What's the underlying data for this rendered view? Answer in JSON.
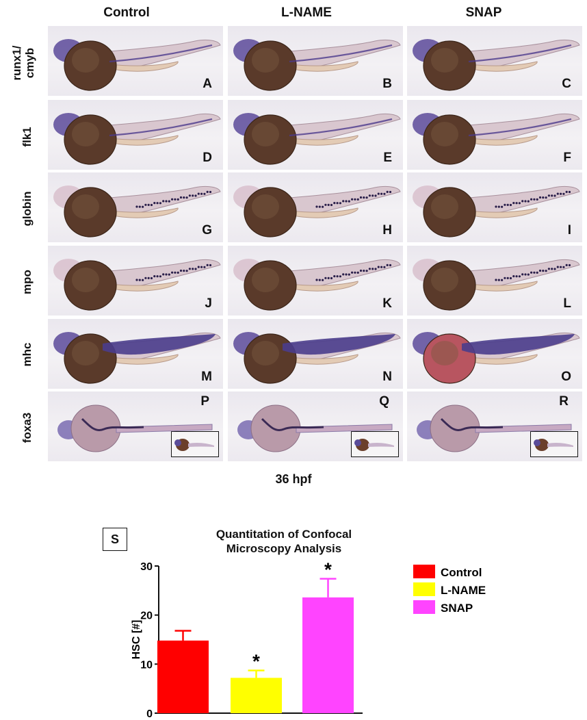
{
  "columns": [
    "Control",
    "L-NAME",
    "SNAP"
  ],
  "rows": [
    {
      "label_lines": [
        "runx1/",
        "cmyb"
      ],
      "stain": "purple",
      "panels": [
        "A",
        "B",
        "C"
      ]
    },
    {
      "label_lines": [
        "flk1"
      ],
      "stain": "purple",
      "panels": [
        "D",
        "E",
        "F"
      ]
    },
    {
      "label_lines": [
        "globin"
      ],
      "stain": "dots",
      "panels": [
        "G",
        "H",
        "I"
      ]
    },
    {
      "label_lines": [
        "mpo"
      ],
      "stain": "dots",
      "panels": [
        "J",
        "K",
        "L"
      ]
    },
    {
      "label_lines": [
        "mhc"
      ],
      "stain": "muscle",
      "panels": [
        "M",
        "N",
        "O"
      ]
    },
    {
      "label_lines": [
        "foxa3"
      ],
      "stain": "dorsal",
      "panels": [
        "P",
        "Q",
        "R"
      ]
    }
  ],
  "footer_label": "36 hpf",
  "panel_s_label": "S",
  "colors": {
    "control": "#ff0000",
    "lname": "#ffff00",
    "snap": "#ff44ff",
    "stain": "#4b3a8c",
    "yolk": "#5a3a2a",
    "embryo_body": "#d9c7cf"
  },
  "chart_data": {
    "type": "bar",
    "title": [
      "Quantitation of Confocal",
      "Microscopy Analysis"
    ],
    "ylabel": "HSC [#]",
    "xlabel": "",
    "categories": [
      "Control",
      "L-NAME",
      "SNAP"
    ],
    "values": [
      14.8,
      7.2,
      23.6
    ],
    "errors": [
      2.0,
      1.5,
      3.8
    ],
    "significance": [
      "",
      "*",
      "*"
    ],
    "ylim": [
      0,
      30
    ],
    "yticks": [
      0,
      10,
      20,
      30
    ],
    "legend": [
      "Control",
      "L-NAME",
      "SNAP"
    ],
    "legend_position": "right",
    "colors": [
      "#ff0000",
      "#ffff00",
      "#ff44ff"
    ]
  }
}
